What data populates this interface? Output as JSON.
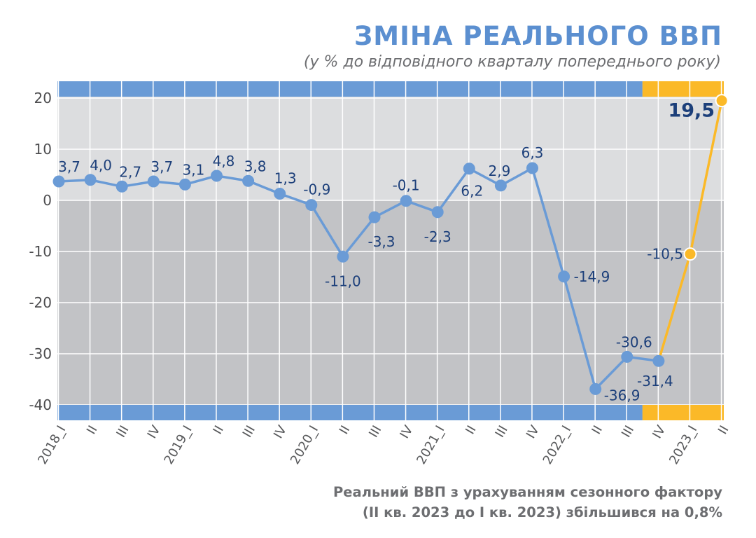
{
  "title": "ЗМІНА РЕАЛЬНОГО ВВП",
  "subtitle": "(у % до відповідного кварталу попереднього року)",
  "footnote": {
    "line1": "Реальний ВВП з урахуванням сезонного фактору",
    "line2": "(II кв. 2023 до I кв. 2023) збільшився на 0,8%"
  },
  "colors": {
    "series_blue": "#6a9bd6",
    "series_yellow": "#fbb928",
    "band_blue": "#6a9bd6",
    "band_yellow": "#fbb928",
    "bg_positive": "#dcdddf",
    "bg_negative": "#c2c3c6",
    "label_text": "#1c3f7a"
  },
  "chart_data": {
    "type": "line",
    "ylim": [
      -40,
      20
    ],
    "yticks": [
      "20",
      "10",
      "0",
      "-10",
      "-20",
      "-30",
      "-40"
    ],
    "yticks_values": [
      20,
      10,
      0,
      -10,
      -20,
      -30,
      -40
    ],
    "categories": [
      "2018_I",
      "II",
      "III",
      "IV",
      "2019_I",
      "II",
      "III",
      "IV",
      "2020_I",
      "II",
      "III",
      "IV",
      "2021_I",
      "II",
      "III",
      "IV",
      "2022_I",
      "II",
      "III",
      "IV",
      "2023_I",
      "II"
    ],
    "values": [
      3.7,
      4.0,
      2.7,
      3.7,
      3.1,
      4.8,
      3.8,
      1.3,
      -0.9,
      -11.0,
      -3.3,
      -0.1,
      -2.3,
      6.2,
      2.9,
      6.3,
      -14.9,
      -36.9,
      -30.6,
      -31.4,
      -10.5,
      19.5
    ],
    "value_labels": [
      "3,7",
      "4,0",
      "2,7",
      "3,7",
      "3,1",
      "4,8",
      "3,8",
      "1,3",
      "-0,9",
      "-11,0",
      "-3,3",
      "-0,1",
      "-2,3",
      "6,2",
      "2,9",
      "6,3",
      "-14,9",
      "-36,9",
      "-30,6",
      "-31,4",
      "-10,5",
      "19,5"
    ],
    "highlight_from_index": 19,
    "grid": true
  }
}
